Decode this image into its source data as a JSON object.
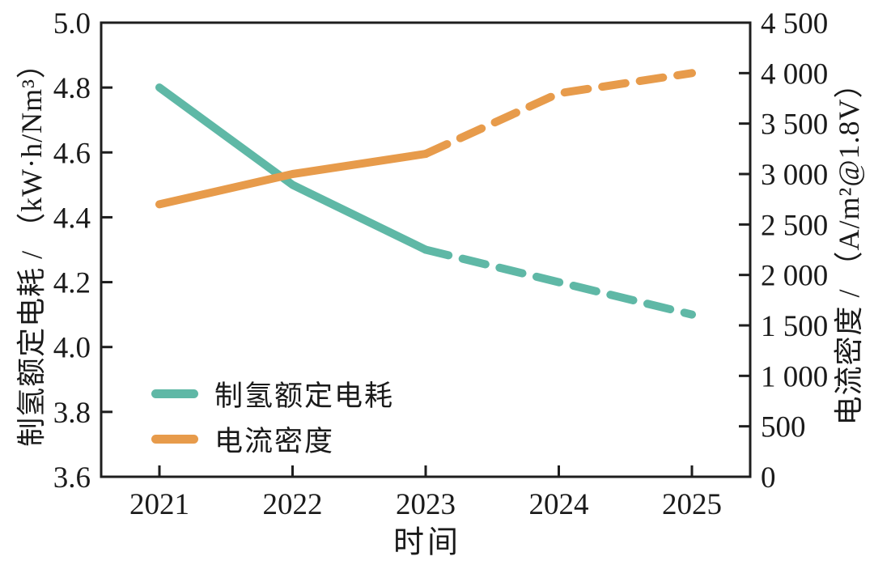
{
  "figure": {
    "background": "#ffffff",
    "axis_color": "#1e1e1e",
    "text_color": "#1a1a1a"
  },
  "chart_data": {
    "type": "line",
    "title": "",
    "grid": false,
    "x": {
      "label": "时间",
      "categories": [
        "2021",
        "2022",
        "2023",
        "2024",
        "2025"
      ]
    },
    "y_left": {
      "label": "制氢额定电耗 / （kW·h/Nm³）",
      "min": 3.6,
      "max": 5.0,
      "ticks": [
        {
          "value": 5.0,
          "label": "5.0"
        },
        {
          "value": 4.8,
          "label": "4.8"
        },
        {
          "value": 4.6,
          "label": "4.6"
        },
        {
          "value": 4.4,
          "label": "4.4"
        },
        {
          "value": 4.2,
          "label": "4.2"
        },
        {
          "value": 4.0,
          "label": "4.0"
        },
        {
          "value": 3.8,
          "label": "3.8"
        },
        {
          "value": 3.6,
          "label": "3.6"
        }
      ]
    },
    "y_right": {
      "label": "电流密度 / （A/m²@1.8V）",
      "min": 0,
      "max": 4500,
      "ticks": [
        {
          "value": 4500,
          "label": "4 500"
        },
        {
          "value": 4000,
          "label": "4 000"
        },
        {
          "value": 3500,
          "label": "3 500"
        },
        {
          "value": 3000,
          "label": "3 000"
        },
        {
          "value": 2500,
          "label": "2 500"
        },
        {
          "value": 2000,
          "label": "2 000"
        },
        {
          "value": 1500,
          "label": "1 500"
        },
        {
          "value": 1000,
          "label": "1 000"
        },
        {
          "value": 500,
          "label": "500"
        },
        {
          "value": 0,
          "label": "0"
        }
      ]
    },
    "series": [
      {
        "key": "hydrogen-power-consumption",
        "name": "制氢额定电耗",
        "axis": "left",
        "color": "#5fb8a6",
        "values": [
          4.8,
          4.5,
          4.3,
          4.2,
          4.1
        ],
        "style": "solid_then_dashed",
        "solid_until_index": 2
      },
      {
        "key": "current-density",
        "name": "电流密度",
        "axis": "right",
        "color": "#e79b4b",
        "values": [
          2700,
          3000,
          3200,
          3800,
          4000
        ],
        "style": "solid_then_dashed",
        "solid_until_index": 2
      }
    ],
    "legend": {
      "position": "inside-bottom-left",
      "entries": [
        "制氢额定电耗",
        "电流密度"
      ]
    }
  }
}
